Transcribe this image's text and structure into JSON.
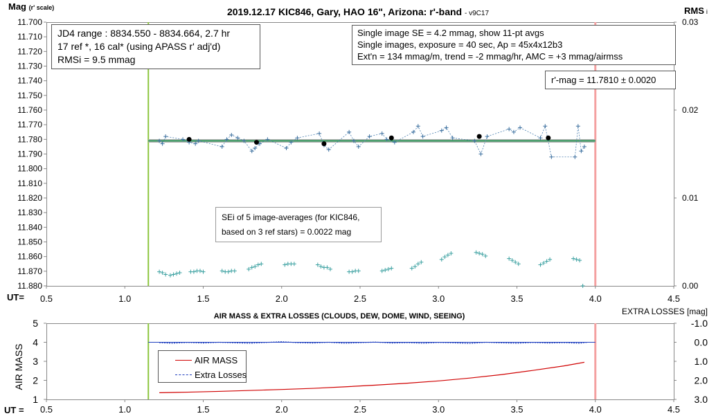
{
  "chart_data": [
    {
      "type": "scatter",
      "title": "2019.12.17 KIC846, Gary, HAO 16\", Arizona: r'-band",
      "version": "- v9C17",
      "ylabel_main": "Mag",
      "ylabel_sub": "(r' scale)",
      "y2label": "RMS",
      "y2label_sub": "i",
      "xlabel": "UT=",
      "xlim": [
        0.5,
        4.5
      ],
      "xticks": [
        "0.5",
        "1.0",
        "1.5",
        "2.0",
        "2.5",
        "3.0",
        "3.5",
        "4.0",
        "4.5"
      ],
      "ylim": [
        11.88,
        11.7
      ],
      "yticks": [
        "11.700",
        "11.710",
        "11.720",
        "11.730",
        "11.740",
        "11.750",
        "11.760",
        "11.770",
        "11.780",
        "11.790",
        "11.800",
        "11.810",
        "11.820",
        "11.830",
        "11.840",
        "11.850",
        "11.860",
        "11.870",
        "11.880"
      ],
      "y2lim": [
        0.0,
        0.03
      ],
      "y2ticks": [
        "0.03",
        "0.02",
        "0.01",
        "0.00"
      ],
      "start_line_ut": 1.15,
      "end_line_ut": 4.0,
      "mean_mag": 11.781,
      "mean_line_range": [
        1.15,
        4.0
      ],
      "legend_boxes": {
        "info_left": [
          "JD4 range : 8834.550 - 8834.664,  2.7  hr",
          "17 ref *, 16 cal* (using APASS r' adj'd)",
          "RMSi = 9.5 mmag"
        ],
        "info_right": [
          "Single image SE = 4.2 mmag, show  11-pt avgs",
          "Single images, exposure = 40 sec, Ap = 45x4x12b3",
          "Ext'n = 134 mmag/m, trend =  -2 mmag/hr, AMC = +3 mmag/airmss"
        ],
        "rmag": "r'-mag = 11.7810 ± 0.0020",
        "sei": [
          "SEi of 5 image-averages (for KIC846,",
          "based on 3 ref stars) = 0.0022 mag"
        ]
      },
      "series": [
        {
          "marker": "plus",
          "x": [
            1.22,
            1.24,
            1.26,
            1.37,
            1.41,
            1.45,
            1.47,
            1.62,
            1.65,
            1.68,
            1.72,
            1.76,
            1.81,
            1.83,
            1.86,
            1.91,
            2.03,
            2.06,
            2.1,
            2.24,
            2.27,
            2.3,
            2.43,
            2.46,
            2.49,
            2.56,
            2.64,
            2.67,
            2.72,
            2.84,
            2.87,
            2.9,
            3.02,
            3.05,
            3.09,
            3.23,
            3.27,
            3.31,
            3.45,
            3.48,
            3.52,
            3.65,
            3.68,
            3.72,
            3.87,
            3.89,
            3.91,
            3.93
          ],
          "y": [
            11.781,
            11.783,
            11.778,
            11.78,
            11.782,
            11.783,
            11.781,
            11.785,
            11.78,
            11.777,
            11.779,
            11.781,
            11.788,
            11.786,
            11.783,
            11.78,
            11.786,
            11.782,
            11.779,
            11.776,
            11.784,
            11.787,
            11.775,
            11.781,
            11.785,
            11.778,
            11.776,
            11.78,
            11.782,
            11.775,
            11.771,
            11.778,
            11.774,
            11.772,
            11.779,
            11.781,
            11.79,
            11.778,
            11.773,
            11.775,
            11.772,
            11.779,
            11.771,
            11.792,
            11.792,
            11.771,
            11.788,
            11.785
          ]
        },
        {
          "marker": "dot",
          "x": [
            1.41,
            1.84,
            2.27,
            2.7,
            3.26,
            3.7
          ],
          "y": [
            11.78,
            11.782,
            11.783,
            11.779,
            11.778,
            11.779
          ]
        },
        {
          "marker": "plus",
          "axis": "y2",
          "x": [
            1.22,
            1.24,
            1.26,
            1.29,
            1.31,
            1.33,
            1.35,
            1.42,
            1.44,
            1.46,
            1.48,
            1.5,
            1.62,
            1.64,
            1.66,
            1.68,
            1.7,
            1.79,
            1.81,
            1.83,
            1.85,
            1.87,
            2.02,
            2.04,
            2.06,
            2.08,
            2.23,
            2.25,
            2.27,
            2.29,
            2.31,
            2.43,
            2.45,
            2.47,
            2.49,
            2.64,
            2.66,
            2.68,
            2.7,
            2.83,
            2.85,
            2.87,
            2.89,
            3.02,
            3.04,
            3.06,
            3.08,
            3.24,
            3.26,
            3.28,
            3.3,
            3.45,
            3.47,
            3.49,
            3.51,
            3.65,
            3.67,
            3.69,
            3.71,
            3.86,
            3.88,
            3.9,
            3.92
          ],
          "y": [
            0.0016,
            0.0015,
            0.0013,
            0.0012,
            0.0013,
            0.0014,
            0.0015,
            0.0016,
            0.0016,
            0.0017,
            0.0017,
            0.0016,
            0.0017,
            0.0016,
            0.0016,
            0.0017,
            0.0017,
            0.0019,
            0.0021,
            0.0022,
            0.0024,
            0.0025,
            0.0024,
            0.0025,
            0.0025,
            0.0025,
            0.0024,
            0.0022,
            0.0021,
            0.0021,
            0.0019,
            0.0016,
            0.0016,
            0.0017,
            0.0017,
            0.0017,
            0.0018,
            0.0019,
            0.002,
            0.002,
            0.0022,
            0.0025,
            0.0027,
            0.003,
            0.0033,
            0.0035,
            0.0037,
            0.0038,
            0.0037,
            0.0036,
            0.0034,
            0.0031,
            0.0029,
            0.0027,
            0.0025,
            0.0024,
            0.0026,
            0.0028,
            0.003,
            0.0031,
            0.003,
            0.0029,
            0.0
          ]
        }
      ]
    },
    {
      "type": "line",
      "title": "AIR MASS & EXTRA LOSSES (CLOUDS, DEW, DOME, WIND, SEEING)",
      "ylabel": "AIR MASS",
      "y2label": "EXTRA LOSSES [mag]",
      "xlabel": "UT =",
      "xlim": [
        0.5,
        4.5
      ],
      "xticks": [
        "0.5",
        "1.0",
        "1.5",
        "2.0",
        "2.5",
        "3.0",
        "3.5",
        "4.0",
        "4.5"
      ],
      "ylim": [
        1,
        5
      ],
      "yticks": [
        "5",
        "4",
        "3",
        "2",
        "1"
      ],
      "y2lim": [
        -1.0,
        3.0
      ],
      "y2ticks": [
        "-1.0",
        "0.0",
        "1.0",
        "2.0",
        "3.0"
      ],
      "start_line_ut": 1.15,
      "end_line_ut": 4.0,
      "series": [
        {
          "name": "AIR MASS",
          "color": "#d00000",
          "x": [
            1.22,
            1.4,
            1.6,
            1.8,
            2.0,
            2.2,
            2.4,
            2.6,
            2.8,
            3.0,
            3.2,
            3.4,
            3.6,
            3.8,
            3.93
          ],
          "y": [
            1.35,
            1.38,
            1.42,
            1.47,
            1.52,
            1.58,
            1.66,
            1.75,
            1.85,
            1.97,
            2.12,
            2.3,
            2.52,
            2.76,
            2.95
          ]
        },
        {
          "name": "Extra Losses",
          "color": "#1f3fbf",
          "axis": "y2",
          "x": [
            1.22,
            1.3,
            1.4,
            1.5,
            1.6,
            1.7,
            1.8,
            1.9,
            2.0,
            2.1,
            2.2,
            2.3,
            2.4,
            2.5,
            2.6,
            2.7,
            2.8,
            2.9,
            3.0,
            3.1,
            3.2,
            3.3,
            3.4,
            3.5,
            3.6,
            3.7,
            3.8,
            3.9,
            3.95
          ],
          "y": [
            0.02,
            0.05,
            0.01,
            0.04,
            0.0,
            0.03,
            0.05,
            0.01,
            -0.03,
            0.02,
            0.04,
            0.0,
            0.05,
            0.02,
            -0.01,
            0.04,
            0.02,
            0.05,
            0.01,
            0.03,
            0.06,
            0.0,
            0.03,
            0.05,
            0.01,
            0.04,
            0.02,
            0.05,
            0.0
          ]
        }
      ]
    }
  ]
}
